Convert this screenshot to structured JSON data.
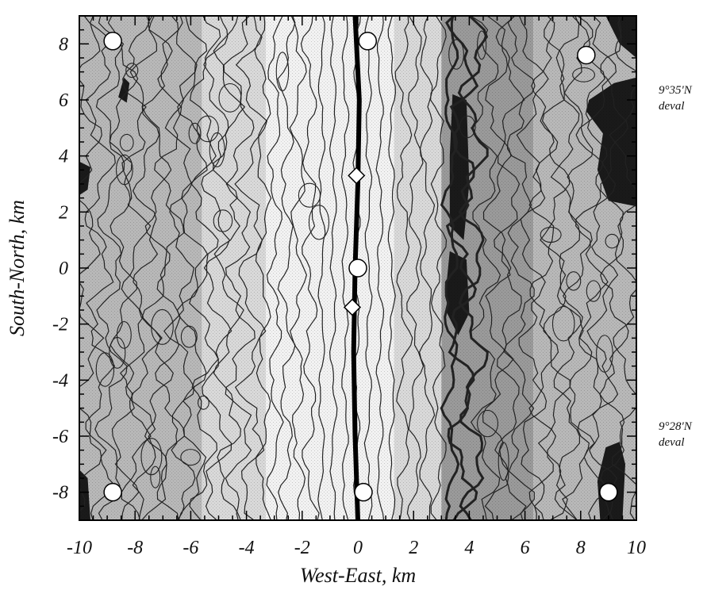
{
  "chart_data": {
    "type": "heatmap",
    "xlabel": "West-East, km",
    "ylabel": "South-North, km",
    "xlim": [
      -10,
      10
    ],
    "ylim": [
      -9,
      9
    ],
    "x_ticks": [
      -10,
      -8,
      -6,
      -4,
      -2,
      0,
      2,
      4,
      6,
      8,
      10
    ],
    "y_ticks": [
      -8,
      -6,
      -4,
      -2,
      0,
      2,
      4,
      6,
      8
    ],
    "x_tick_labels": [
      "-10",
      "-8",
      "-6",
      "-4",
      "-2",
      "0",
      "2",
      "4",
      "6",
      "8",
      "10"
    ],
    "y_tick_labels": [
      "-8",
      "-6",
      "-4",
      "-2",
      "0",
      "2",
      "4",
      "6",
      "8"
    ],
    "grid": false,
    "annotations": [
      {
        "line1": "9°35'N",
        "line2": "deval",
        "y": 6
      },
      {
        "line1": "9°28'N",
        "line2": "deval",
        "y": -6
      }
    ],
    "axis_trace": [
      [
        0,
        -9
      ],
      [
        -0.1,
        -6
      ],
      [
        -0.15,
        -3
      ],
      [
        -0.1,
        0
      ],
      [
        0,
        3
      ],
      [
        0.05,
        6
      ],
      [
        -0.1,
        9
      ]
    ],
    "circle_markers": [
      {
        "x": -8.8,
        "y": 8.1
      },
      {
        "x": 0.35,
        "y": 8.1
      },
      {
        "x": 8.2,
        "y": 7.6
      },
      {
        "x": 0,
        "y": 0
      },
      {
        "x": -8.8,
        "y": -8
      },
      {
        "x": 0.2,
        "y": -8
      },
      {
        "x": 9,
        "y": -8
      }
    ],
    "diamond_markers": [
      {
        "x": -0.05,
        "y": 3.3
      },
      {
        "x": -0.2,
        "y": -1.4
      }
    ],
    "colors": {
      "background": "#ffffff",
      "light": "#f2f2f2",
      "mid_light": "#d9d9d9",
      "mid": "#b8b8b8",
      "dark": "#9a9a9a",
      "darkest": "#1a1a1a",
      "contour": "#222222"
    }
  }
}
